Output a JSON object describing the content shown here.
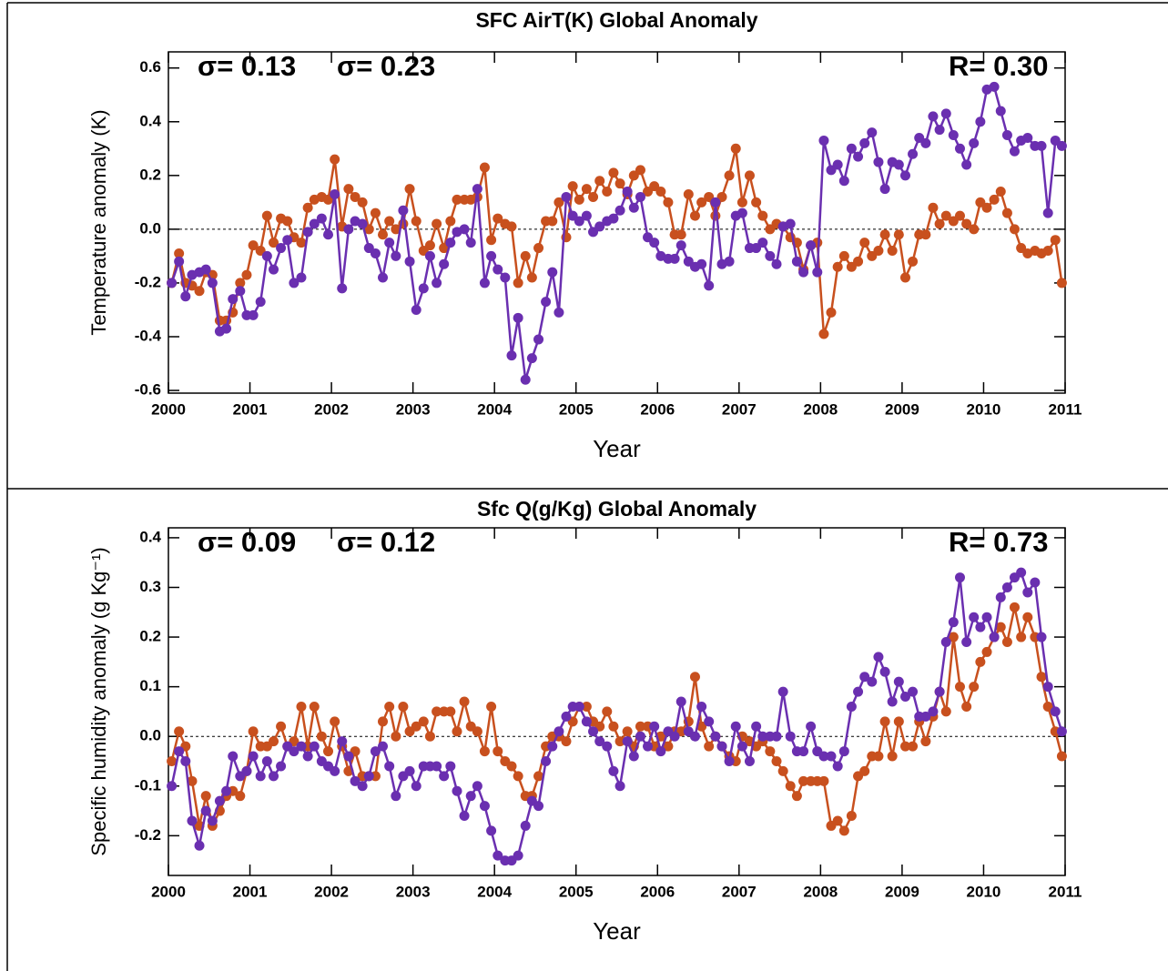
{
  "chart_data": [
    {
      "type": "line",
      "title": "SFC AirT(K) Global Anomaly",
      "x_label": "Year",
      "y_label": "Temperature anomaly (K)",
      "annotations": [
        {
          "text": "σ= 0.13",
          "color": "#c8501e"
        },
        {
          "text": "σ= 0.23",
          "color": "#6a2fb0"
        },
        {
          "text": "R= 0.30",
          "color": "#000000"
        }
      ],
      "x": [
        2000.04,
        2000.13,
        2000.21,
        2000.29,
        2000.38,
        2000.46,
        2000.54,
        2000.63,
        2000.71,
        2000.79,
        2000.88,
        2000.96,
        2001.04,
        2001.13,
        2001.21,
        2001.29,
        2001.38,
        2001.46,
        2001.54,
        2001.63,
        2001.71,
        2001.79,
        2001.88,
        2001.96,
        2002.04,
        2002.13,
        2002.21,
        2002.29,
        2002.38,
        2002.46,
        2002.54,
        2002.63,
        2002.71,
        2002.79,
        2002.88,
        2002.96,
        2003.04,
        2003.13,
        2003.21,
        2003.29,
        2003.38,
        2003.46,
        2003.54,
        2003.63,
        2003.71,
        2003.79,
        2003.88,
        2003.96,
        2004.04,
        2004.13,
        2004.21,
        2004.29,
        2004.38,
        2004.46,
        2004.54,
        2004.63,
        2004.71,
        2004.79,
        2004.88,
        2004.96,
        2005.04,
        2005.13,
        2005.21,
        2005.29,
        2005.38,
        2005.46,
        2005.54,
        2005.63,
        2005.71,
        2005.79,
        2005.88,
        2005.96,
        2006.04,
        2006.13,
        2006.21,
        2006.29,
        2006.38,
        2006.46,
        2006.54,
        2006.63,
        2006.71,
        2006.79,
        2006.88,
        2006.96,
        2007.04,
        2007.13,
        2007.21,
        2007.29,
        2007.38,
        2007.46,
        2007.54,
        2007.63,
        2007.71,
        2007.79,
        2007.88,
        2007.96,
        2008.04,
        2008.13,
        2008.21,
        2008.29,
        2008.38,
        2008.46,
        2008.54,
        2008.63,
        2008.71,
        2008.79,
        2008.88,
        2008.96,
        2009.04,
        2009.13,
        2009.21,
        2009.29,
        2009.38,
        2009.46,
        2009.54,
        2009.63,
        2009.71,
        2009.79,
        2009.88,
        2009.96,
        2010.04,
        2010.13,
        2010.21,
        2010.29,
        2010.38,
        2010.46,
        2010.54,
        2010.63,
        2010.71,
        2010.79,
        2010.88,
        2010.96
      ],
      "series": [
        {
          "color": "#c8501e",
          "values": [
            -0.2,
            -0.09,
            -0.2,
            -0.21,
            -0.23,
            -0.16,
            -0.17,
            -0.34,
            -0.34,
            -0.31,
            -0.2,
            -0.17,
            -0.06,
            -0.08,
            0.05,
            -0.05,
            0.04,
            0.03,
            -0.03,
            -0.05,
            0.08,
            0.11,
            0.12,
            0.11,
            0.26,
            0.01,
            0.15,
            0.12,
            0.1,
            0.0,
            0.06,
            -0.02,
            0.03,
            0.0,
            0.02,
            0.15,
            0.03,
            -0.08,
            -0.06,
            0.02,
            -0.07,
            0.03,
            0.11,
            0.11,
            0.11,
            0.12,
            0.23,
            -0.04,
            0.04,
            0.02,
            0.01,
            -0.2,
            -0.1,
            -0.18,
            -0.07,
            0.03,
            0.03,
            0.1,
            -0.03,
            0.16,
            0.11,
            0.15,
            0.12,
            0.18,
            0.14,
            0.21,
            0.17,
            0.13,
            0.2,
            0.22,
            0.14,
            0.16,
            0.14,
            0.1,
            -0.02,
            -0.02,
            0.13,
            0.05,
            0.1,
            0.12,
            0.05,
            0.12,
            0.2,
            0.3,
            0.1,
            0.2,
            0.1,
            0.05,
            0.0,
            0.02,
            0.01,
            -0.03,
            -0.05,
            -0.15,
            -0.06,
            -0.05,
            -0.39,
            -0.31,
            -0.14,
            -0.1,
            -0.14,
            -0.12,
            -0.05,
            -0.1,
            -0.08,
            -0.02,
            -0.08,
            -0.02,
            -0.18,
            -0.12,
            -0.02,
            -0.02,
            0.08,
            0.02,
            0.05,
            0.03,
            0.05,
            0.02,
            0.0,
            0.1,
            0.08,
            0.11,
            0.14,
            0.06,
            0.0,
            -0.07,
            -0.09,
            -0.08,
            -0.09,
            -0.08,
            -0.04,
            -0.2
          ]
        },
        {
          "color": "#6a2fb0",
          "values": [
            -0.2,
            -0.12,
            -0.25,
            -0.17,
            -0.16,
            -0.15,
            -0.2,
            -0.38,
            -0.37,
            -0.26,
            -0.23,
            -0.32,
            -0.32,
            -0.27,
            -0.1,
            -0.15,
            -0.07,
            -0.04,
            -0.2,
            -0.18,
            -0.01,
            0.02,
            0.04,
            -0.02,
            0.13,
            -0.22,
            0.0,
            0.03,
            0.02,
            -0.07,
            -0.09,
            -0.18,
            -0.05,
            -0.1,
            0.07,
            -0.12,
            -0.3,
            -0.22,
            -0.1,
            -0.2,
            -0.13,
            -0.05,
            -0.01,
            0.0,
            -0.05,
            0.15,
            -0.2,
            -0.1,
            -0.15,
            -0.18,
            -0.47,
            -0.33,
            -0.56,
            -0.48,
            -0.41,
            -0.27,
            -0.16,
            -0.31,
            0.12,
            0.05,
            0.03,
            0.05,
            -0.01,
            0.01,
            0.03,
            0.04,
            0.07,
            0.14,
            0.08,
            0.12,
            -0.03,
            -0.05,
            -0.1,
            -0.11,
            -0.11,
            -0.06,
            -0.12,
            -0.14,
            -0.13,
            -0.21,
            0.1,
            -0.13,
            -0.12,
            0.05,
            0.06,
            -0.07,
            -0.07,
            -0.05,
            -0.1,
            -0.13,
            0.01,
            0.02,
            -0.12,
            -0.16,
            -0.06,
            -0.16,
            0.33,
            0.22,
            0.24,
            0.18,
            0.3,
            0.27,
            0.32,
            0.36,
            0.25,
            0.15,
            0.25,
            0.24,
            0.2,
            0.28,
            0.34,
            0.32,
            0.42,
            0.37,
            0.43,
            0.35,
            0.3,
            0.24,
            0.32,
            0.4,
            0.52,
            0.53,
            0.44,
            0.35,
            0.29,
            0.33,
            0.34,
            0.31,
            0.31,
            0.06,
            0.33,
            0.31
          ]
        }
      ],
      "xlim": [
        2000,
        2011
      ],
      "xticks": [
        2000,
        2001,
        2002,
        2003,
        2004,
        2005,
        2006,
        2007,
        2008,
        2009,
        2010,
        2011
      ],
      "ylim": [
        -0.61,
        0.66
      ],
      "yticks": [
        -0.6,
        -0.4,
        -0.2,
        {
          "value": 0,
          "label": "0.0"
        },
        0.2,
        0.4,
        0.6
      ]
    },
    {
      "type": "line",
      "title": "Sfc Q(g/Kg) Global Anomaly",
      "x_label": "Year",
      "y_label": "Specific humidity anomaly (g Kg⁻¹)",
      "annotations": [
        {
          "text": "σ= 0.09",
          "color": "#c8501e"
        },
        {
          "text": "σ= 0.12",
          "color": "#6a2fb0"
        },
        {
          "text": "R= 0.73",
          "color": "#000000"
        }
      ],
      "x": [
        2000.04,
        2000.13,
        2000.21,
        2000.29,
        2000.38,
        2000.46,
        2000.54,
        2000.63,
        2000.71,
        2000.79,
        2000.88,
        2000.96,
        2001.04,
        2001.13,
        2001.21,
        2001.29,
        2001.38,
        2001.46,
        2001.54,
        2001.63,
        2001.71,
        2001.79,
        2001.88,
        2001.96,
        2002.04,
        2002.13,
        2002.21,
        2002.29,
        2002.38,
        2002.46,
        2002.54,
        2002.63,
        2002.71,
        2002.79,
        2002.88,
        2002.96,
        2003.04,
        2003.13,
        2003.21,
        2003.29,
        2003.38,
        2003.46,
        2003.54,
        2003.63,
        2003.71,
        2003.79,
        2003.88,
        2003.96,
        2004.04,
        2004.13,
        2004.21,
        2004.29,
        2004.38,
        2004.46,
        2004.54,
        2004.63,
        2004.71,
        2004.79,
        2004.88,
        2004.96,
        2005.04,
        2005.13,
        2005.21,
        2005.29,
        2005.38,
        2005.46,
        2005.54,
        2005.63,
        2005.71,
        2005.79,
        2005.88,
        2005.96,
        2006.04,
        2006.13,
        2006.21,
        2006.29,
        2006.38,
        2006.46,
        2006.54,
        2006.63,
        2006.71,
        2006.79,
        2006.88,
        2006.96,
        2007.04,
        2007.13,
        2007.21,
        2007.29,
        2007.38,
        2007.46,
        2007.54,
        2007.63,
        2007.71,
        2007.79,
        2007.88,
        2007.96,
        2008.04,
        2008.13,
        2008.21,
        2008.29,
        2008.38,
        2008.46,
        2008.54,
        2008.63,
        2008.71,
        2008.79,
        2008.88,
        2008.96,
        2009.04,
        2009.13,
        2009.21,
        2009.29,
        2009.38,
        2009.46,
        2009.54,
        2009.63,
        2009.71,
        2009.79,
        2009.88,
        2009.96,
        2010.04,
        2010.13,
        2010.21,
        2010.29,
        2010.38,
        2010.46,
        2010.54,
        2010.63,
        2010.71,
        2010.79,
        2010.88,
        2010.96
      ],
      "series": [
        {
          "color": "#c8501e",
          "values": [
            -0.05,
            0.01,
            -0.02,
            -0.09,
            -0.18,
            -0.12,
            -0.18,
            -0.15,
            -0.12,
            -0.11,
            -0.12,
            -0.07,
            0.01,
            -0.02,
            -0.02,
            -0.01,
            0.02,
            -0.02,
            -0.01,
            0.06,
            -0.02,
            0.06,
            0.0,
            -0.03,
            0.03,
            -0.02,
            -0.07,
            -0.03,
            -0.08,
            -0.08,
            -0.08,
            0.03,
            0.06,
            0.0,
            0.06,
            0.01,
            0.02,
            0.03,
            0.0,
            0.05,
            0.05,
            0.05,
            0.01,
            0.07,
            0.02,
            0.01,
            -0.03,
            0.06,
            -0.03,
            -0.05,
            -0.06,
            -0.08,
            -0.12,
            -0.12,
            -0.08,
            -0.02,
            0.0,
            0.0,
            -0.01,
            0.03,
            0.06,
            0.06,
            0.03,
            0.02,
            0.05,
            0.02,
            -0.01,
            0.01,
            -0.02,
            0.02,
            0.02,
            -0.02,
            0.0,
            -0.02,
            0.01,
            0.01,
            0.03,
            0.12,
            0.02,
            -0.02,
            0.0,
            -0.02,
            -0.04,
            -0.05,
            0.0,
            -0.01,
            -0.02,
            -0.01,
            -0.03,
            -0.05,
            -0.07,
            -0.1,
            -0.12,
            -0.09,
            -0.09,
            -0.09,
            -0.09,
            -0.18,
            -0.17,
            -0.19,
            -0.16,
            -0.08,
            -0.07,
            -0.04,
            -0.04,
            0.03,
            -0.04,
            0.03,
            -0.02,
            -0.02,
            0.03,
            -0.01,
            0.04,
            0.09,
            0.05,
            0.2,
            0.1,
            0.06,
            0.1,
            0.15,
            0.17,
            0.2,
            0.22,
            0.19,
            0.26,
            0.2,
            0.24,
            0.2,
            0.12,
            0.06,
            0.01,
            -0.04
          ]
        },
        {
          "color": "#6a2fb0",
          "values": [
            -0.1,
            -0.03,
            -0.05,
            -0.17,
            -0.22,
            -0.15,
            -0.17,
            -0.13,
            -0.11,
            -0.04,
            -0.08,
            -0.07,
            -0.04,
            -0.08,
            -0.05,
            -0.08,
            -0.06,
            -0.02,
            -0.03,
            -0.02,
            -0.04,
            -0.02,
            -0.05,
            -0.06,
            -0.07,
            -0.01,
            -0.04,
            -0.09,
            -0.1,
            -0.08,
            -0.03,
            -0.02,
            -0.06,
            -0.12,
            -0.08,
            -0.07,
            -0.1,
            -0.06,
            -0.06,
            -0.06,
            -0.08,
            -0.06,
            -0.11,
            -0.16,
            -0.12,
            -0.1,
            -0.14,
            -0.19,
            -0.24,
            -0.25,
            -0.25,
            -0.24,
            -0.18,
            -0.13,
            -0.14,
            -0.05,
            -0.02,
            0.01,
            0.04,
            0.06,
            0.06,
            0.03,
            0.01,
            -0.01,
            -0.02,
            -0.07,
            -0.1,
            -0.01,
            -0.04,
            0.0,
            -0.02,
            0.02,
            -0.03,
            0.01,
            0.0,
            0.07,
            0.01,
            0.0,
            0.06,
            0.03,
            0.0,
            -0.02,
            -0.05,
            0.02,
            -0.02,
            -0.05,
            0.02,
            0.0,
            0.0,
            0.0,
            0.09,
            0.0,
            -0.03,
            -0.03,
            0.02,
            -0.03,
            -0.04,
            -0.04,
            -0.06,
            -0.03,
            0.06,
            0.09,
            0.12,
            0.11,
            0.16,
            0.13,
            0.07,
            0.11,
            0.08,
            0.09,
            0.04,
            0.04,
            0.05,
            0.09,
            0.19,
            0.23,
            0.32,
            0.19,
            0.24,
            0.22,
            0.24,
            0.2,
            0.28,
            0.3,
            0.32,
            0.33,
            0.29,
            0.31,
            0.2,
            0.1,
            0.05,
            0.01
          ]
        }
      ],
      "xlim": [
        2000,
        2011
      ],
      "xticks": [
        2000,
        2001,
        2002,
        2003,
        2004,
        2005,
        2006,
        2007,
        2008,
        2009,
        2010,
        2011
      ],
      "ylim": [
        -0.28,
        0.42
      ],
      "yticks": [
        -0.2,
        -0.1,
        {
          "value": 0,
          "label": "0.0"
        },
        0.1,
        0.2,
        0.3,
        0.4
      ]
    }
  ]
}
